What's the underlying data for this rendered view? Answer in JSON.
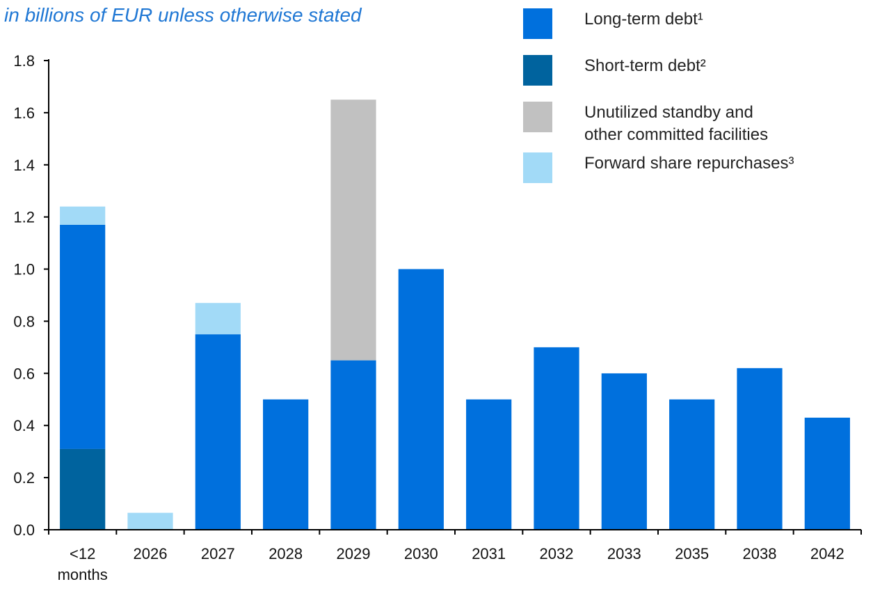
{
  "subtitle": "in billions of EUR unless otherwise stated",
  "legend": [
    {
      "label": "Long-term debt¹",
      "color": "#0070dd"
    },
    {
      "label": "Short-term debt²",
      "color": "#00639e"
    },
    {
      "label": "Unutilized standby and\nother committed facilities",
      "color": "#c1c1c1"
    },
    {
      "label": "Forward share repurchases³",
      "color": "#a2daf7"
    }
  ],
  "chart_data": {
    "type": "bar",
    "stacked": true,
    "subtitle": "in billions of EUR unless otherwise stated",
    "categories": [
      [
        "<12",
        "months"
      ],
      [
        "2026"
      ],
      [
        "2027"
      ],
      [
        "2028"
      ],
      [
        "2029"
      ],
      [
        "2030"
      ],
      [
        "2031"
      ],
      [
        "2032"
      ],
      [
        "2033"
      ],
      [
        "2035"
      ],
      [
        "2038"
      ],
      [
        "2042"
      ]
    ],
    "series": [
      {
        "name": "Short-term debt²",
        "color": "#00639e",
        "values": [
          0.31,
          0,
          0,
          0,
          0,
          0,
          0,
          0,
          0,
          0,
          0,
          0
        ]
      },
      {
        "name": "Long-term debt¹",
        "color": "#0070dd",
        "values": [
          0.86,
          0,
          0.75,
          0.5,
          0.65,
          1.0,
          0.5,
          0.7,
          0.6,
          0.5,
          0.62,
          0.43
        ]
      },
      {
        "name": "Unutilized standby and other committed facilities",
        "color": "#c1c1c1",
        "values": [
          0,
          0,
          0,
          0,
          1.0,
          0,
          0,
          0,
          0,
          0,
          0,
          0
        ]
      },
      {
        "name": "Forward share repurchases³",
        "color": "#a2daf7",
        "values": [
          0.07,
          0.065,
          0.12,
          0,
          0,
          0,
          0,
          0,
          0,
          0,
          0,
          0
        ]
      }
    ],
    "ylim": [
      0,
      1.8
    ],
    "yticks": [
      "0.0",
      "0.2",
      "0.4",
      "0.6",
      "0.8",
      "1.0",
      "1.2",
      "1.4",
      "1.6",
      "1.8"
    ],
    "grid": false,
    "legend_position": "top-right"
  }
}
